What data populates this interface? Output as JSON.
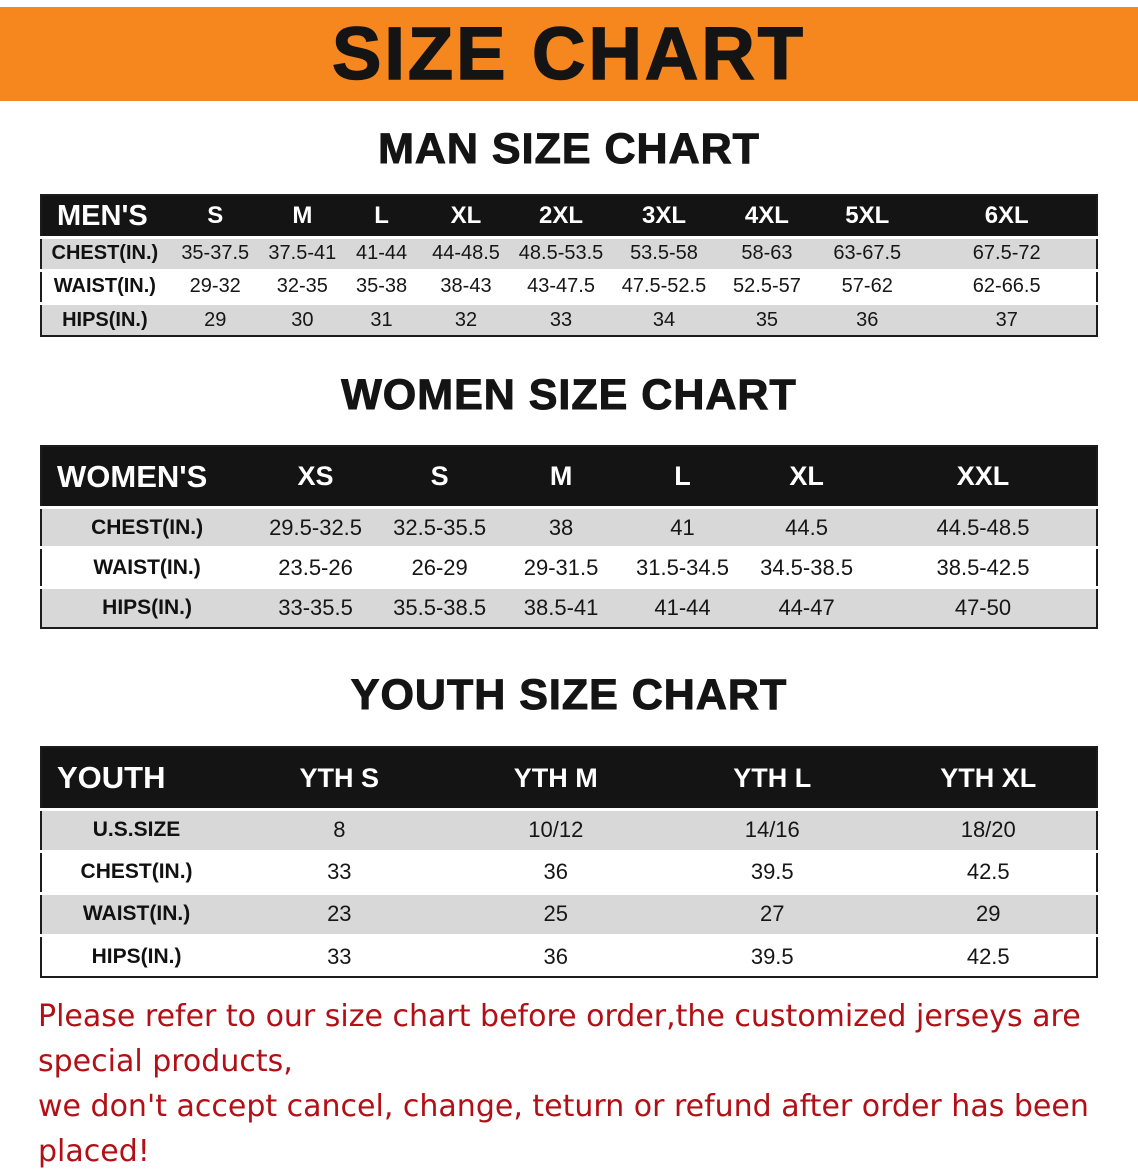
{
  "banner": {
    "title": "SIZE CHART"
  },
  "sections": [
    {
      "id": "men",
      "heading": "MAN SIZE CHART",
      "table": {
        "header": [
          "MEN'S",
          "S",
          "M",
          "L",
          "XL",
          "2XL",
          "3XL",
          "4XL",
          "5XL",
          "6XL"
        ],
        "rows": [
          [
            "CHEST(IN.)",
            "35-37.5",
            "37.5-41",
            "41-44",
            "44-48.5",
            "48.5-53.5",
            "53.5-58",
            "58-63",
            "63-67.5",
            "67.5-72"
          ],
          [
            "WAIST(IN.)",
            "29-32",
            "32-35",
            "35-38",
            "38-43",
            "43-47.5",
            "47.5-52.5",
            "52.5-57",
            "57-62",
            "62-66.5"
          ],
          [
            "HIPS(IN.)",
            "29",
            "30",
            "31",
            "32",
            "33",
            "34",
            "35",
            "36",
            "37"
          ]
        ]
      }
    },
    {
      "id": "women",
      "heading": "WOMEN SIZE CHART",
      "table": {
        "header": [
          "WOMEN'S",
          "XS",
          "S",
          "M",
          "L",
          "XL",
          "XXL"
        ],
        "rows": [
          [
            "CHEST(IN.)",
            "29.5-32.5",
            "32.5-35.5",
            "38",
            "41",
            "44.5",
            "44.5-48.5"
          ],
          [
            "WAIST(IN.)",
            "23.5-26",
            "26-29",
            "29-31.5",
            "31.5-34.5",
            "34.5-38.5",
            "38.5-42.5"
          ],
          [
            "HIPS(IN.)",
            "33-35.5",
            "35.5-38.5",
            "38.5-41",
            "41-44",
            "44-47",
            "47-50"
          ]
        ]
      }
    },
    {
      "id": "youth",
      "heading": "YOUTH SIZE CHART",
      "table": {
        "header": [
          "YOUTH",
          "YTH S",
          "YTH M",
          "YTH L",
          "YTH XL"
        ],
        "rows": [
          [
            "U.S.SIZE",
            "8",
            "10/12",
            "14/16",
            "18/20"
          ],
          [
            "CHEST(IN.)",
            "33",
            "36",
            "39.5",
            "42.5"
          ],
          [
            "WAIST(IN.)",
            "23",
            "25",
            "27",
            "29"
          ],
          [
            "HIPS(IN.)",
            "33",
            "36",
            "39.5",
            "42.5"
          ]
        ]
      }
    }
  ],
  "footer": {
    "line1": "Please refer to our size chart before order,the customized jerseys are special products,",
    "line2": "we don't accept cancel, change, teturn or refund after order has been placed!"
  },
  "colors": {
    "banner_orange": "#f6871f",
    "table_header_black": "#141414",
    "row_gray": "#d8d8d8",
    "note_red": "#b21016"
  }
}
